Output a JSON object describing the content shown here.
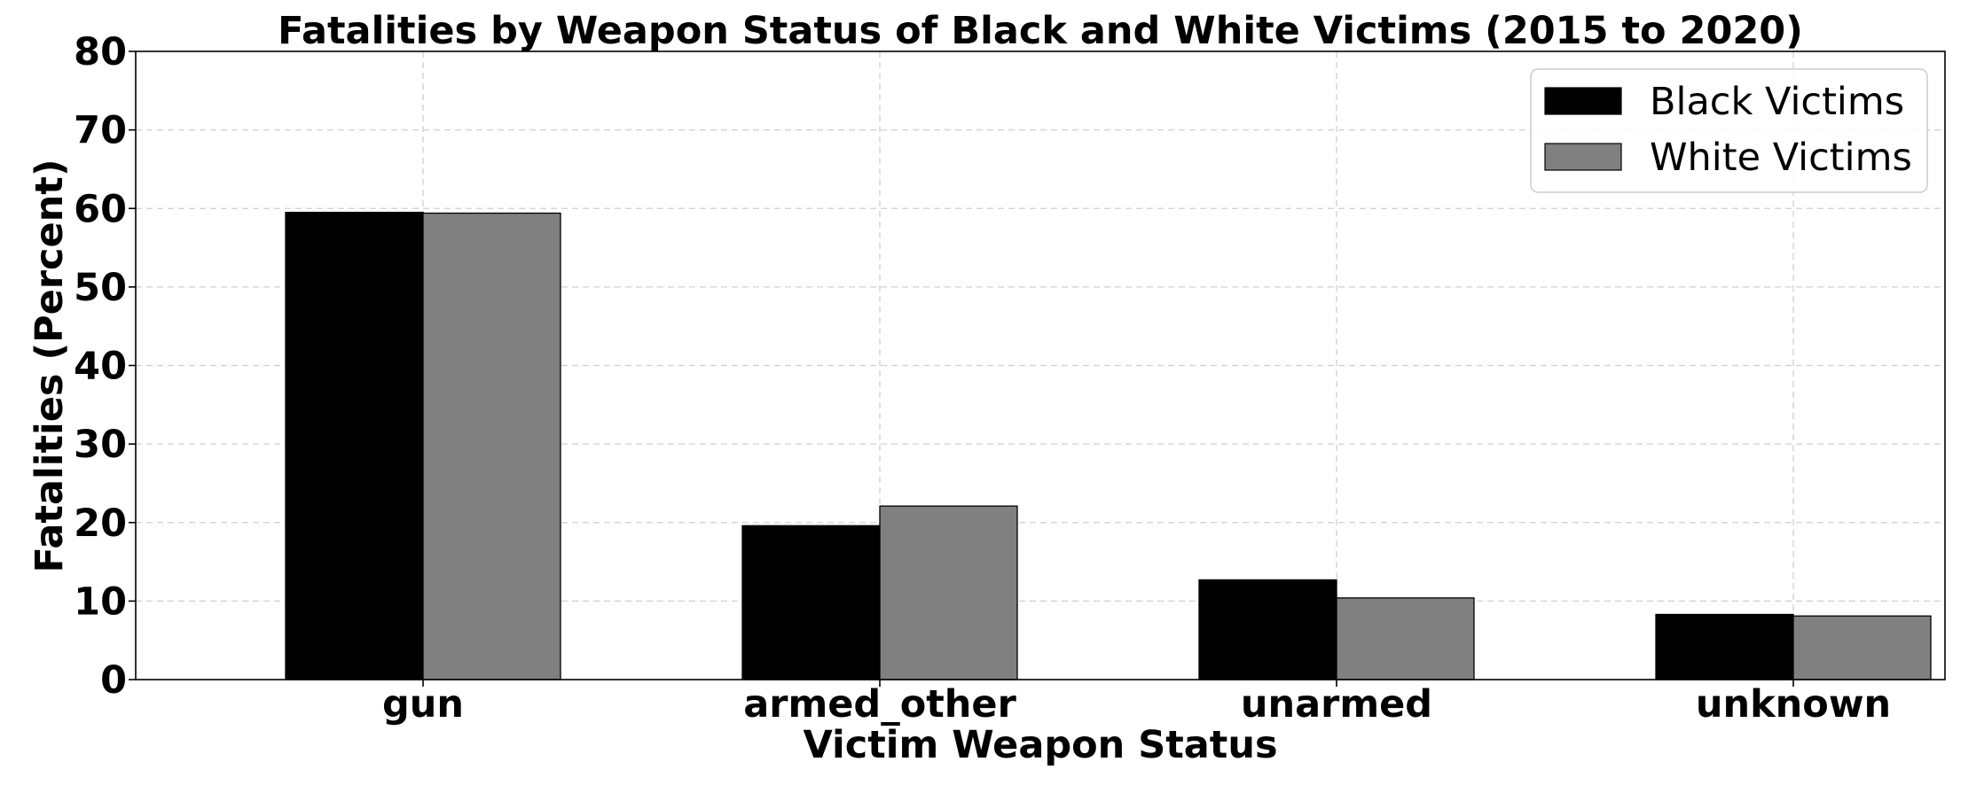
{
  "chart_data": {
    "type": "bar",
    "title": "Fatalities by Weapon Status of Black and White Victims (2015 to 2020)",
    "xlabel": "Victim Weapon Status",
    "ylabel": "Fatalities (Percent)",
    "categories": [
      "gun",
      "armed_other",
      "unarmed",
      "unknown"
    ],
    "series": [
      {
        "name": "Black Victims",
        "color": "#000000",
        "values": [
          59.5,
          19.6,
          12.7,
          8.3
        ]
      },
      {
        "name": "White Victims",
        "color": "#808080",
        "values": [
          59.4,
          22.1,
          10.4,
          8.1
        ]
      }
    ],
    "ylim": [
      0,
      80
    ],
    "yticks": [
      "0",
      "10",
      "20",
      "30",
      "40",
      "50",
      "60",
      "70",
      "80"
    ],
    "grid": true,
    "legend_position": "top-right"
  }
}
